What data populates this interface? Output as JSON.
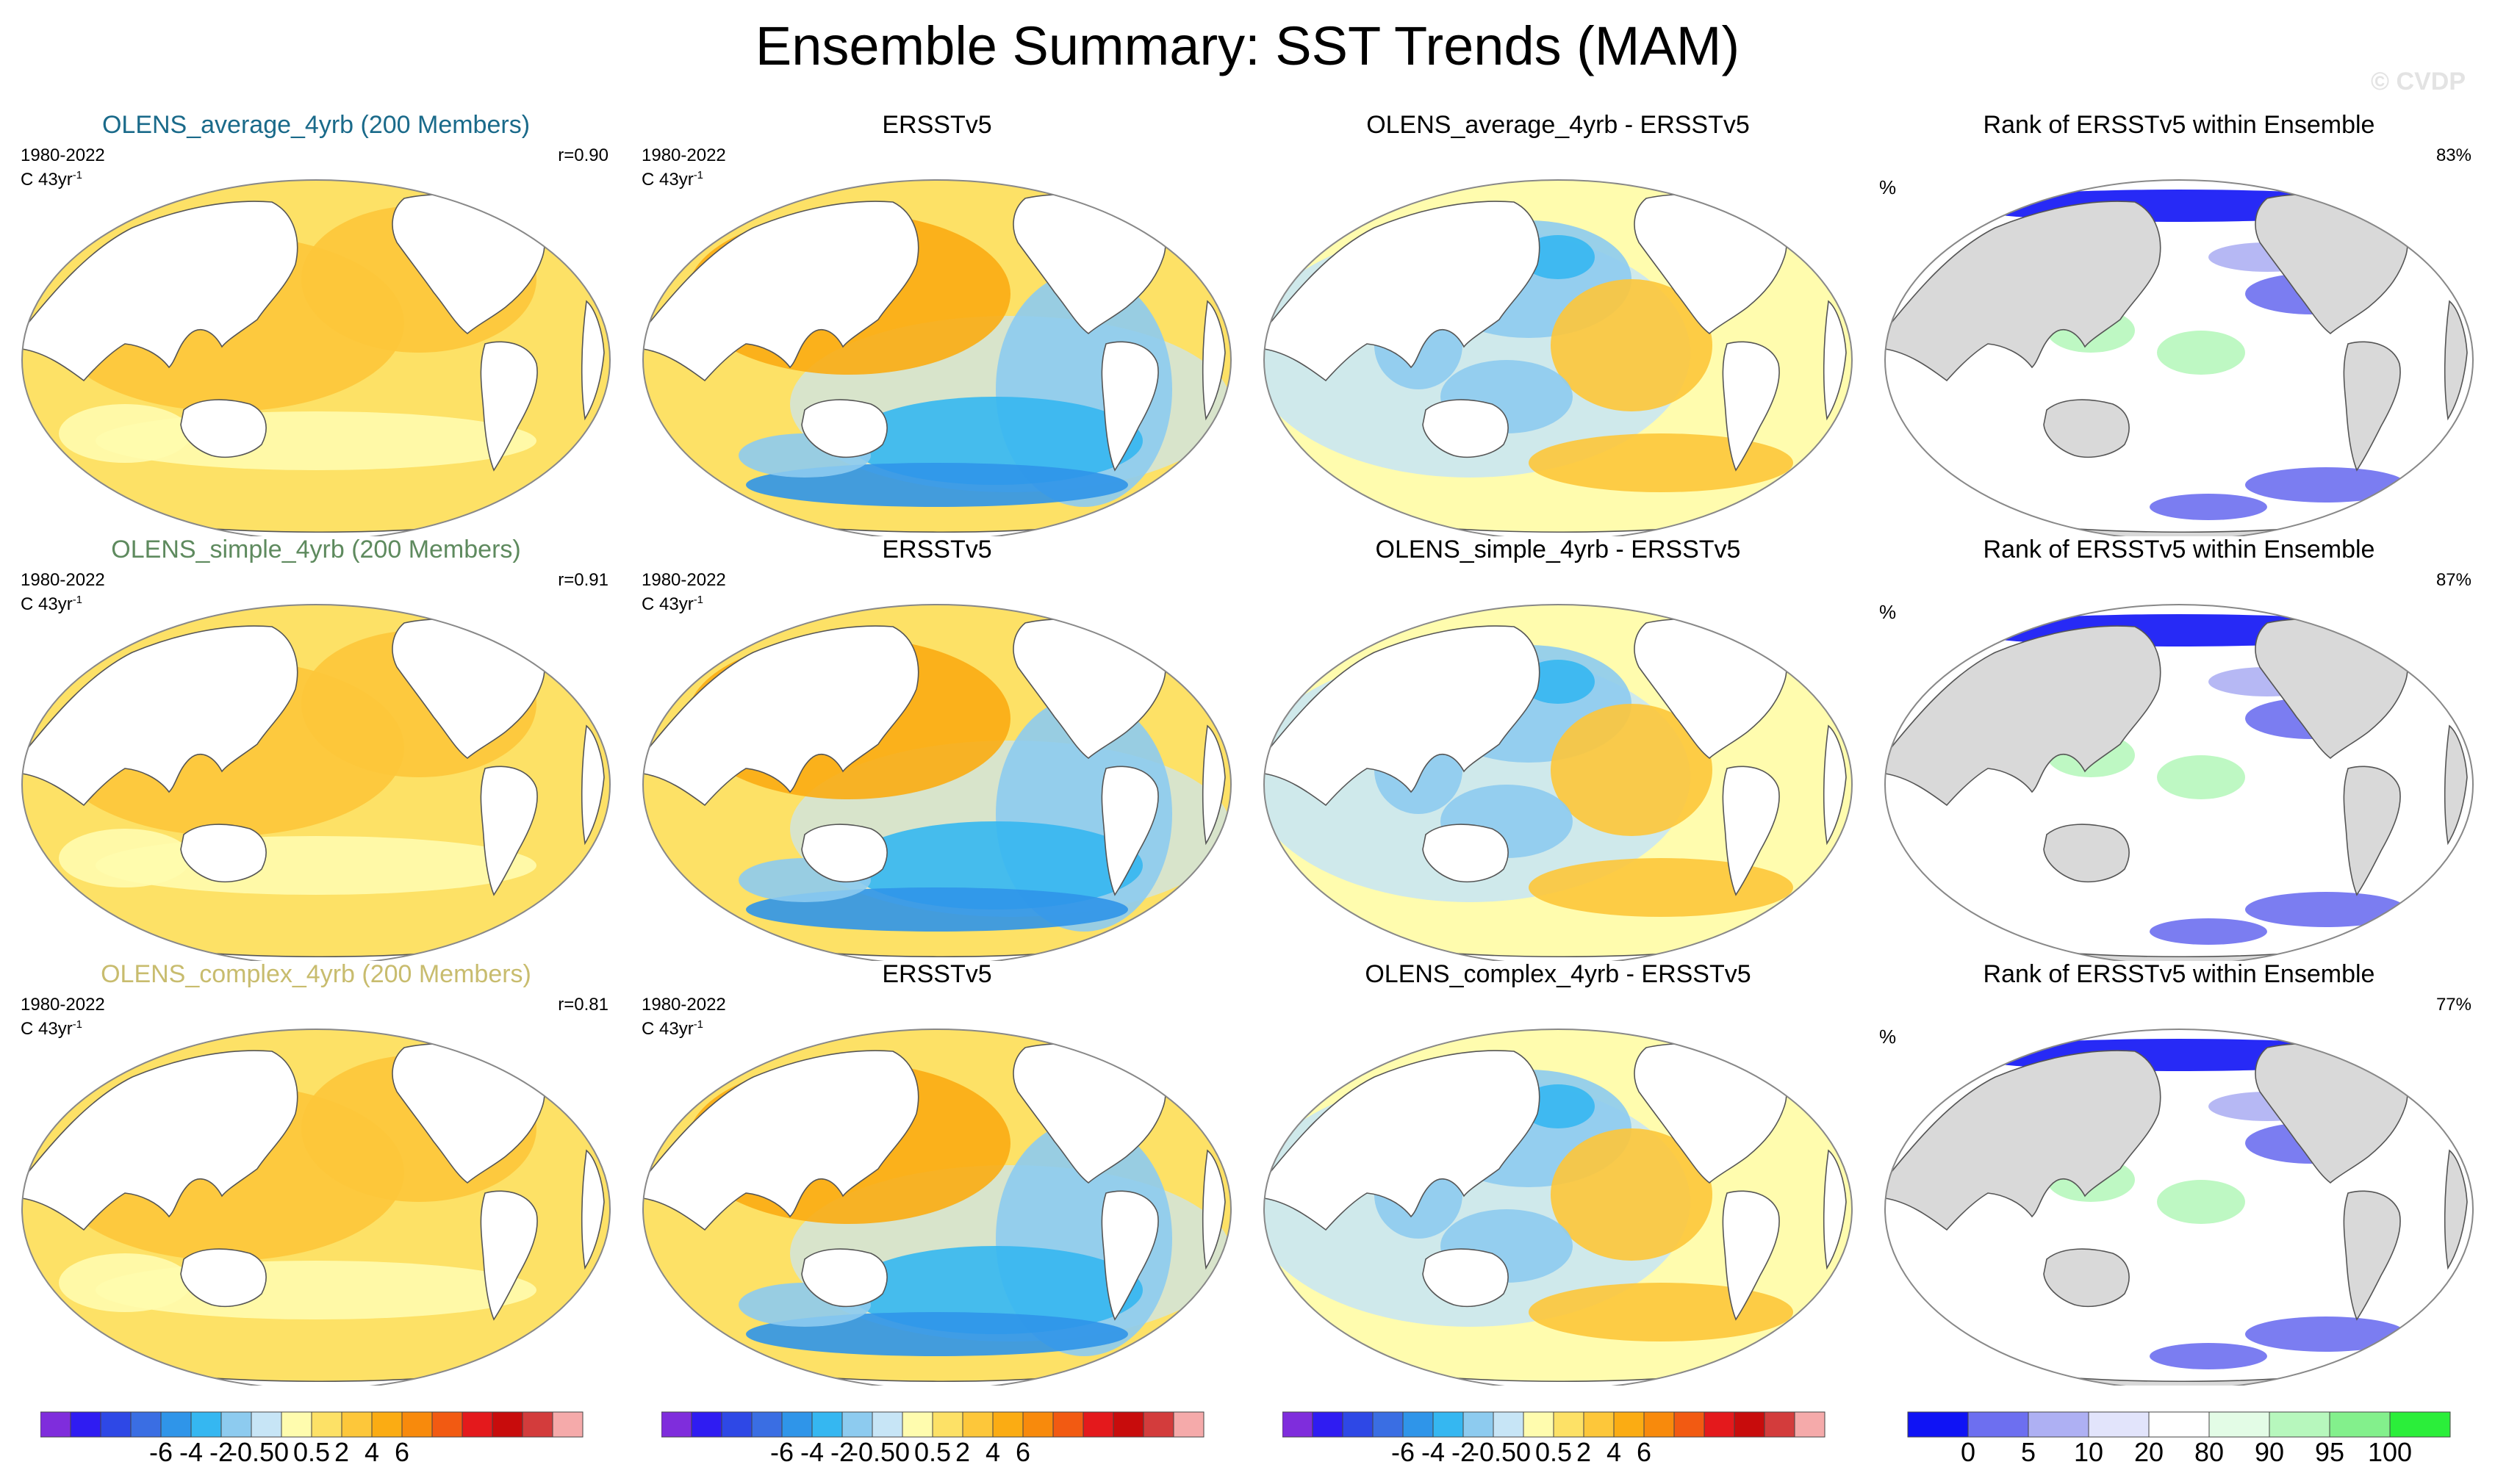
{
  "title": "Ensemble Summary: SST Trends (MAM)",
  "watermark": "© CVDP",
  "rows": [
    {
      "ensemble": {
        "title": "OLENS_average_4yrb (200 Members)",
        "title_color": "#1a6a8a",
        "years": "1980-2022",
        "units": "C 43yr",
        "units_sup": "-1",
        "r": "r=0.90"
      },
      "obs": {
        "title": "ERSSTv5",
        "years": "1980-2022",
        "units": "C 43yr",
        "units_sup": "-1"
      },
      "diff": {
        "title": "OLENS_average_4yrb - ERSSTv5"
      },
      "rank": {
        "title": "Rank of ERSSTv5 within Ensemble",
        "unit": "%",
        "percent": "83%"
      }
    },
    {
      "ensemble": {
        "title": "OLENS_simple_4yrb (200 Members)",
        "title_color": "#5e8a5e",
        "years": "1980-2022",
        "units": "C 43yr",
        "units_sup": "-1",
        "r": "r=0.91"
      },
      "obs": {
        "title": "ERSSTv5",
        "years": "1980-2022",
        "units": "C 43yr",
        "units_sup": "-1"
      },
      "diff": {
        "title": "OLENS_simple_4yrb - ERSSTv5"
      },
      "rank": {
        "title": "Rank of ERSSTv5 within Ensemble",
        "unit": "%",
        "percent": "87%"
      }
    },
    {
      "ensemble": {
        "title": "OLENS_complex_4yrb (200 Members)",
        "title_color": "#c8bc6e",
        "years": "1980-2022",
        "units": "C 43yr",
        "units_sup": "-1",
        "r": "r=0.81"
      },
      "obs": {
        "title": "ERSSTv5",
        "years": "1980-2022",
        "units": "C 43yr",
        "units_sup": "-1"
      },
      "diff": {
        "title": "OLENS_complex_4yrb - ERSSTv5"
      },
      "rank": {
        "title": "Rank of ERSSTv5 within Ensemble",
        "unit": "%",
        "percent": "77%"
      }
    }
  ],
  "colorbars": {
    "trend": {
      "colors": [
        "#7f2ddc",
        "#2f1cf2",
        "#2e48e6",
        "#3a6ee3",
        "#2f95e9",
        "#35b7f1",
        "#8dcbef",
        "#c7e5f6",
        "#fffcae",
        "#fde166",
        "#fdc73a",
        "#fbac13",
        "#f88a0c",
        "#f25a12",
        "#e4191c",
        "#c80c0c",
        "#d33c3c",
        "#f5aaaa"
      ],
      "labels": [
        "-6",
        "-4",
        "-2",
        "-0.5",
        "0",
        "0.5",
        "2",
        "4",
        "6"
      ]
    },
    "rank": {
      "colors": [
        "#0f13f5",
        "#6d6ff0",
        "#aeb0f3",
        "#e2e4fb",
        "#ffffff",
        "#e3fce6",
        "#b7f7bd",
        "#83f08c",
        "#2bee3a"
      ],
      "labels": [
        "0",
        "5",
        "10",
        "20",
        "80",
        "90",
        "95",
        "100"
      ]
    }
  },
  "chart_data": {
    "type": "heatmap",
    "title": "Ensemble Summary: SST Trends (MAM)",
    "period": "1980-2022",
    "units": "C 43yr-1",
    "trend_color_levels": [
      -6,
      -4,
      -2,
      -0.5,
      0,
      0.5,
      2,
      4,
      6
    ],
    "rank_color_levels": [
      0,
      5,
      10,
      20,
      80,
      90,
      95,
      100
    ],
    "panels": [
      {
        "row": 1,
        "column": "ensemble",
        "name": "OLENS_average_4yrb (200 Members)",
        "r": 0.9
      },
      {
        "row": 1,
        "column": "observations",
        "name": "ERSSTv5"
      },
      {
        "row": 1,
        "column": "difference",
        "name": "OLENS_average_4yrb - ERSSTv5"
      },
      {
        "row": 1,
        "column": "rank",
        "name": "Rank of ERSSTv5 within Ensemble",
        "percent": 83
      },
      {
        "row": 2,
        "column": "ensemble",
        "name": "OLENS_simple_4yrb (200 Members)",
        "r": 0.91
      },
      {
        "row": 2,
        "column": "observations",
        "name": "ERSSTv5"
      },
      {
        "row": 2,
        "column": "difference",
        "name": "OLENS_simple_4yrb - ERSSTv5"
      },
      {
        "row": 2,
        "column": "rank",
        "name": "Rank of ERSSTv5 within Ensemble",
        "percent": 87
      },
      {
        "row": 3,
        "column": "ensemble",
        "name": "OLENS_complex_4yrb (200 Members)",
        "r": 0.81
      },
      {
        "row": 3,
        "column": "observations",
        "name": "ERSSTv5"
      },
      {
        "row": 3,
        "column": "difference",
        "name": "OLENS_complex_4yrb - ERSSTv5"
      },
      {
        "row": 3,
        "column": "rank",
        "name": "Rank of ERSSTv5 within Ensemble",
        "percent": 77
      }
    ]
  }
}
